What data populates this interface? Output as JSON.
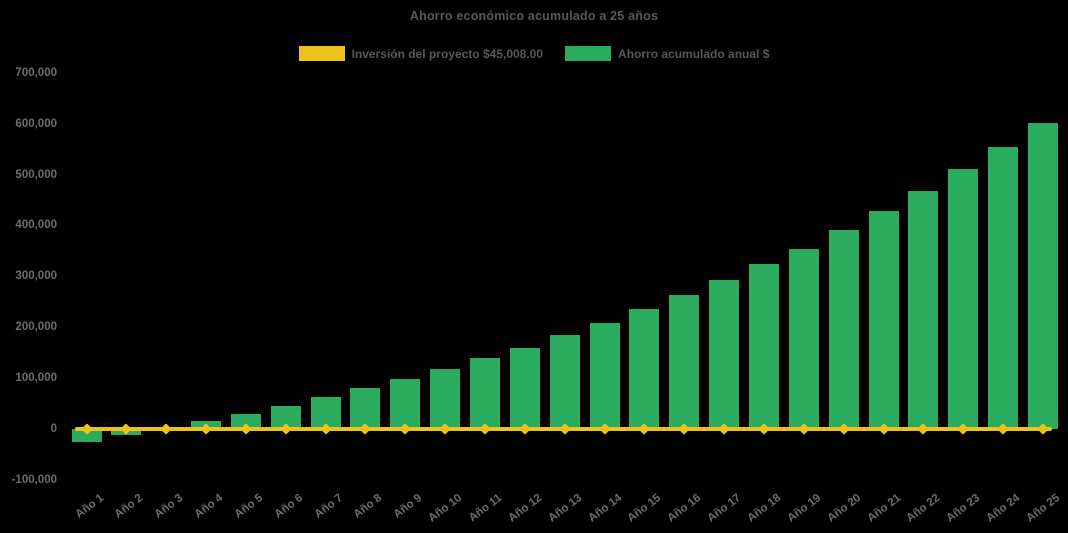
{
  "title": "Ahorro económico acumulado a 25 años",
  "legend": {
    "items": [
      {
        "label": "Inversión del proyecto $45,008.00",
        "color": "#edc31a",
        "type": "line"
      },
      {
        "label": "Ahorro acumulado anual $",
        "color": "#2bab5e",
        "type": "bar"
      }
    ]
  },
  "chart_data": {
    "type": "bar",
    "title": "Ahorro económico acumulado a 25 años",
    "categories": [
      "Año 1",
      "Año 2",
      "Año 3",
      "Año 4",
      "Año 5",
      "Año 6",
      "Año 7",
      "Año 8",
      "Año 9",
      "Año 10",
      "Año 11",
      "Año 12",
      "Año 13",
      "Año 14",
      "Año 15",
      "Año 16",
      "Año 17",
      "Año 18",
      "Año 19",
      "Año 20",
      "Año 21",
      "Año 22",
      "Año 23",
      "Año 24",
      "Año 25"
    ],
    "series": [
      {
        "name": "Ahorro acumulado anual $",
        "type": "bar",
        "color": "#2bab5e",
        "values": [
          -25000,
          -12000,
          2000,
          16000,
          29000,
          46000,
          63000,
          80000,
          99000,
          118000,
          139000,
          160000,
          184000,
          208000,
          235000,
          264000,
          293000,
          324000,
          354000,
          391000,
          428000,
          468000,
          510000,
          555000,
          602000
        ]
      },
      {
        "name": "Inversión del proyecto $45,008.00",
        "type": "line",
        "color": "#edc31a",
        "marker": "diamond",
        "investment_amount": "$45,008.00",
        "plotted_constant_value": 0,
        "values": [
          0,
          0,
          0,
          0,
          0,
          0,
          0,
          0,
          0,
          0,
          0,
          0,
          0,
          0,
          0,
          0,
          0,
          0,
          0,
          0,
          0,
          0,
          0,
          0,
          0
        ]
      }
    ],
    "y_axis": {
      "min": -100000,
      "max": 700000,
      "tick_interval": 100000,
      "tick_labels": [
        "700,000",
        "600,000",
        "500,000",
        "400,000",
        "300,000",
        "200,000",
        "100,000",
        "0",
        "-100,000"
      ],
      "tick_values": [
        700000,
        600000,
        500000,
        400000,
        300000,
        200000,
        100000,
        0,
        -100000
      ]
    },
    "x_axis": {
      "label_rotation_deg": -37
    },
    "grid": false,
    "legend_position": "top",
    "background_color": "#000000",
    "text_colors": {
      "title": "#58585a",
      "axis_labels": "#6c6c6c"
    }
  }
}
